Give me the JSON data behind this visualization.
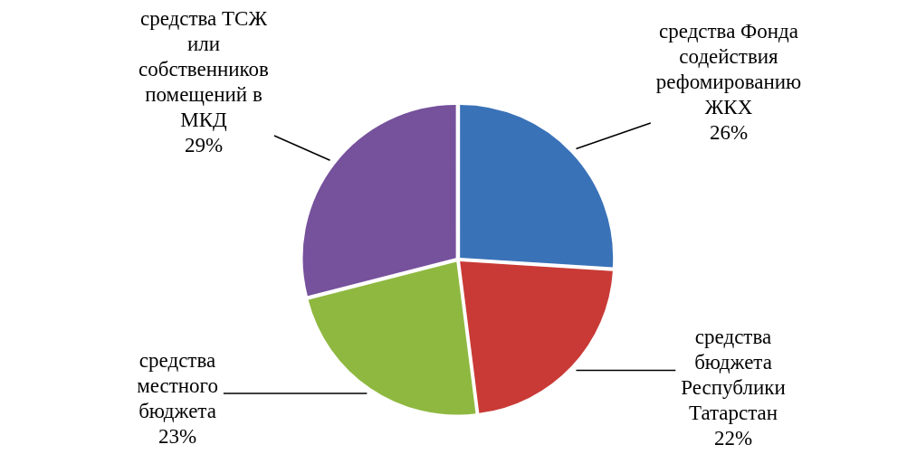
{
  "chart_data": {
    "type": "pie",
    "categories": [
      "средства Фонда содействия рефомированию ЖКХ",
      "средства бюджета Республики Татарстан",
      "средства местного бюджета",
      "средства ТСЖ или собственников помещений в МКД"
    ],
    "values": [
      26,
      22,
      23,
      29
    ],
    "colors": [
      "#3a72b8",
      "#c93a36",
      "#8fb840",
      "#76519c"
    ],
    "value_labels": [
      "26%",
      "22%",
      "23%",
      "29%"
    ],
    "legend": false
  }
}
